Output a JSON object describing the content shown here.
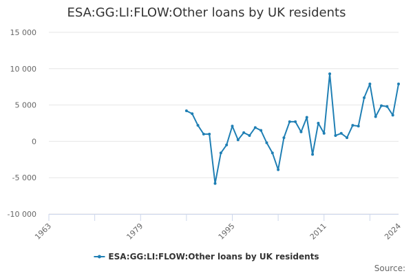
{
  "chart_data": {
    "type": "line",
    "title": "ESA:GG:LI:FLOW:Other loans by UK residents",
    "xlabel": "",
    "ylabel": "",
    "xlim": [
      1963,
      2024
    ],
    "ylim": [
      -10000,
      15000
    ],
    "x_tick_labels": [
      "1963",
      "1979",
      "1995",
      "2011",
      "2024"
    ],
    "y_ticks": [
      -10000,
      -5000,
      0,
      5000,
      10000,
      15000
    ],
    "y_tick_labels": [
      "-10 000",
      "-5 000",
      "0",
      "5 000",
      "10 000",
      "15 000"
    ],
    "grid": true,
    "legend_position": "bottom",
    "series": [
      {
        "name": "ESA:GG:LI:FLOW:Other loans by UK residents",
        "color": "#1f7fb4",
        "x": [
          1987,
          1988,
          1989,
          1990,
          1991,
          1992,
          1993,
          1994,
          1995,
          1996,
          1997,
          1998,
          1999,
          2000,
          2001,
          2002,
          2003,
          2004,
          2005,
          2006,
          2007,
          2008,
          2009,
          2010,
          2011,
          2012,
          2013,
          2014,
          2015,
          2016,
          2017,
          2018,
          2019,
          2020,
          2021,
          2022,
          2023,
          2024
        ],
        "values": [
          4200,
          3800,
          2200,
          1000,
          1000,
          -5800,
          -1600,
          -500,
          2100,
          200,
          1200,
          800,
          1900,
          1500,
          -200,
          -1600,
          -3900,
          500,
          2700,
          2700,
          1300,
          3300,
          -1800,
          2500,
          1100,
          9300,
          800,
          1100,
          500,
          2200,
          2100,
          6000,
          7900,
          3400,
          4900,
          4800,
          3600,
          7900
        ]
      }
    ]
  },
  "source": {
    "label": "Source:"
  }
}
